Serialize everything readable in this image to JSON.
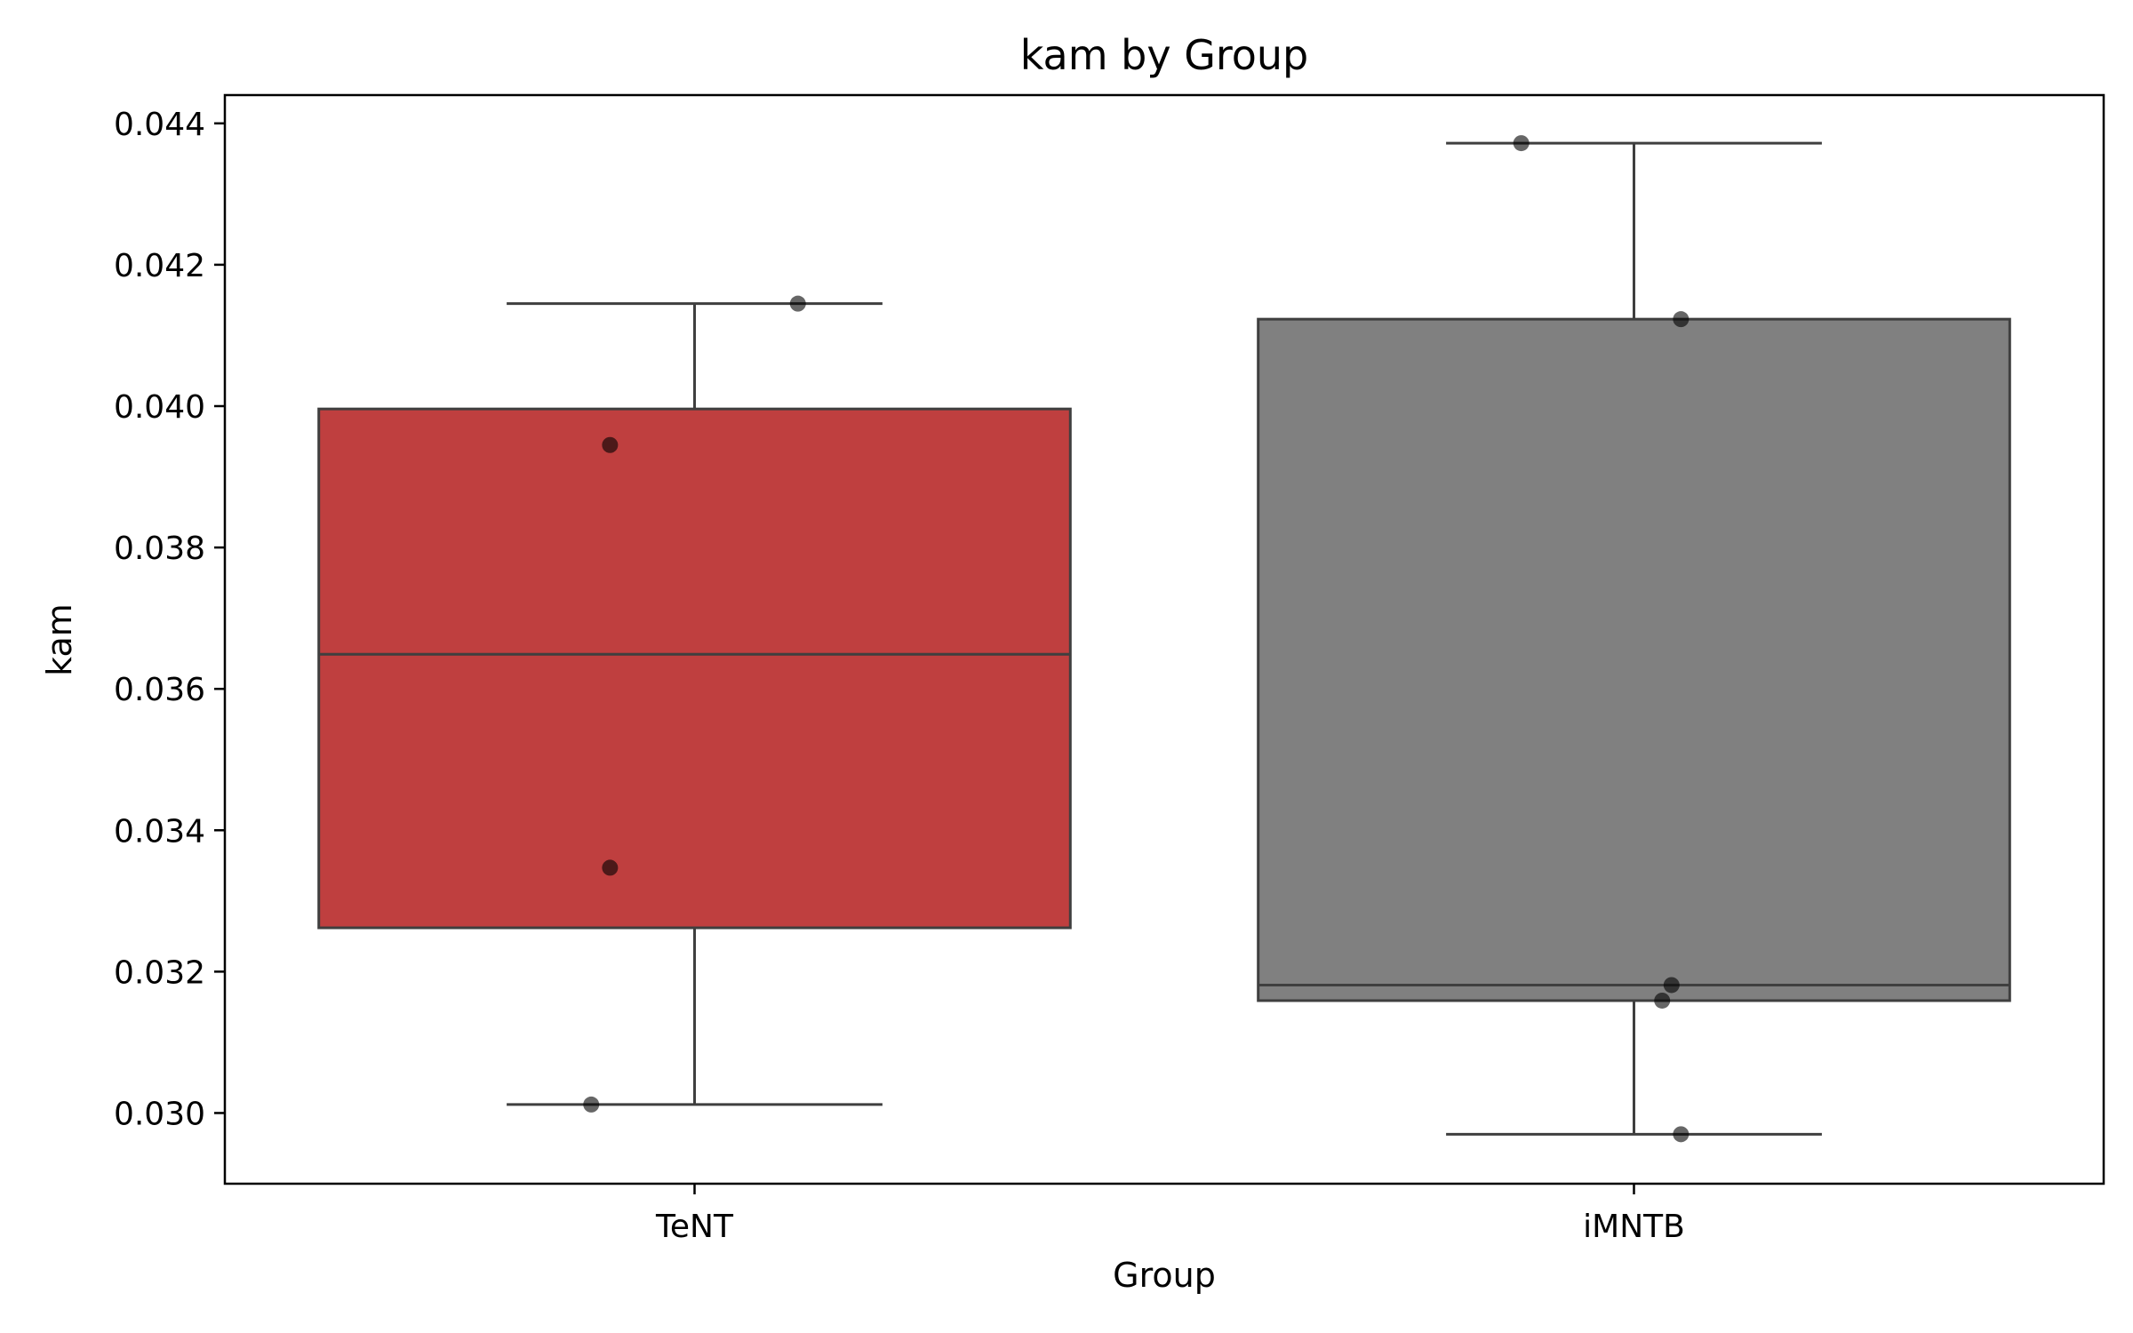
{
  "chart_data": {
    "type": "box",
    "title": "kam by Group",
    "xlabel": "Group",
    "ylabel": "kam",
    "ylim": [
      0.029,
      0.0444
    ],
    "yticks": [
      0.03,
      0.032,
      0.034,
      0.036,
      0.038,
      0.04,
      0.042,
      0.044
    ],
    "ytick_labels": [
      "0.030",
      "0.032",
      "0.034",
      "0.036",
      "0.038",
      "0.040",
      "0.042",
      "0.044"
    ],
    "categories": [
      "TeNT",
      "iMNTB"
    ],
    "boxes": [
      {
        "name": "TeNT",
        "color": "#bf3f3f",
        "whisker_low": 0.03012,
        "q1": 0.03262,
        "median": 0.03649,
        "q3": 0.03996,
        "whisker_high": 0.04145,
        "points": [
          0.04145,
          0.03945,
          0.03347,
          0.03012
        ],
        "jitter": [
          0.11,
          -0.09,
          -0.09,
          -0.11
        ]
      },
      {
        "name": "iMNTB",
        "color": "#808080",
        "whisker_low": 0.0297,
        "q1": 0.03159,
        "median": 0.03181,
        "q3": 0.04123,
        "whisker_high": 0.04372,
        "points": [
          0.04372,
          0.04123,
          0.03181,
          0.03159,
          0.0297
        ],
        "jitter": [
          -0.12,
          0.05,
          0.04,
          0.03,
          0.05
        ]
      }
    ]
  }
}
